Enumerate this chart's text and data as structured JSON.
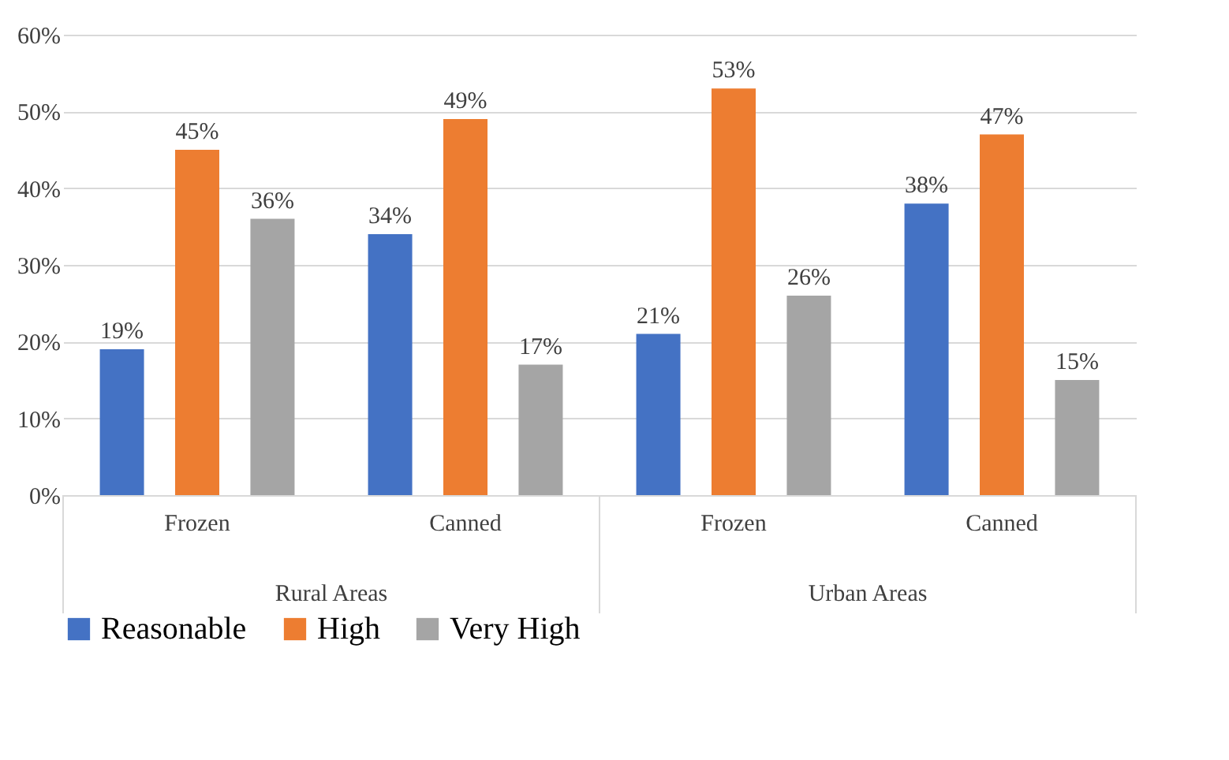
{
  "chart_data": {
    "type": "bar",
    "categories": [
      "Frozen",
      "Canned",
      "Frozen",
      "Canned"
    ],
    "series": [
      {
        "name": "Reasonable",
        "color": "#4472c4",
        "values": [
          19,
          34,
          21,
          38
        ],
        "value_labels": [
          "19%",
          "34%",
          "21%",
          "38%"
        ]
      },
      {
        "name": "High",
        "color": "#ed7d31",
        "values": [
          45,
          49,
          53,
          47
        ],
        "value_labels": [
          "45%",
          "49%",
          "53%",
          "47%"
        ]
      },
      {
        "name": "Very High",
        "color": "#a5a5a5",
        "values": [
          36,
          17,
          26,
          15
        ],
        "value_labels": [
          "36%",
          "17%",
          "26%",
          "15%"
        ]
      }
    ],
    "ylim": [
      0,
      60
    ],
    "yticks": [
      {
        "value": 0,
        "label": "0%"
      },
      {
        "value": 10,
        "label": "10%"
      },
      {
        "value": 20,
        "label": "20%"
      },
      {
        "value": 30,
        "label": "30%"
      },
      {
        "value": 40,
        "label": "40%"
      },
      {
        "value": 50,
        "label": "50%"
      },
      {
        "value": 60,
        "label": "60%"
      }
    ],
    "annotations": [
      "Rural Areas",
      "Urban Areas"
    ],
    "grid": "y",
    "legend": "bottom"
  }
}
